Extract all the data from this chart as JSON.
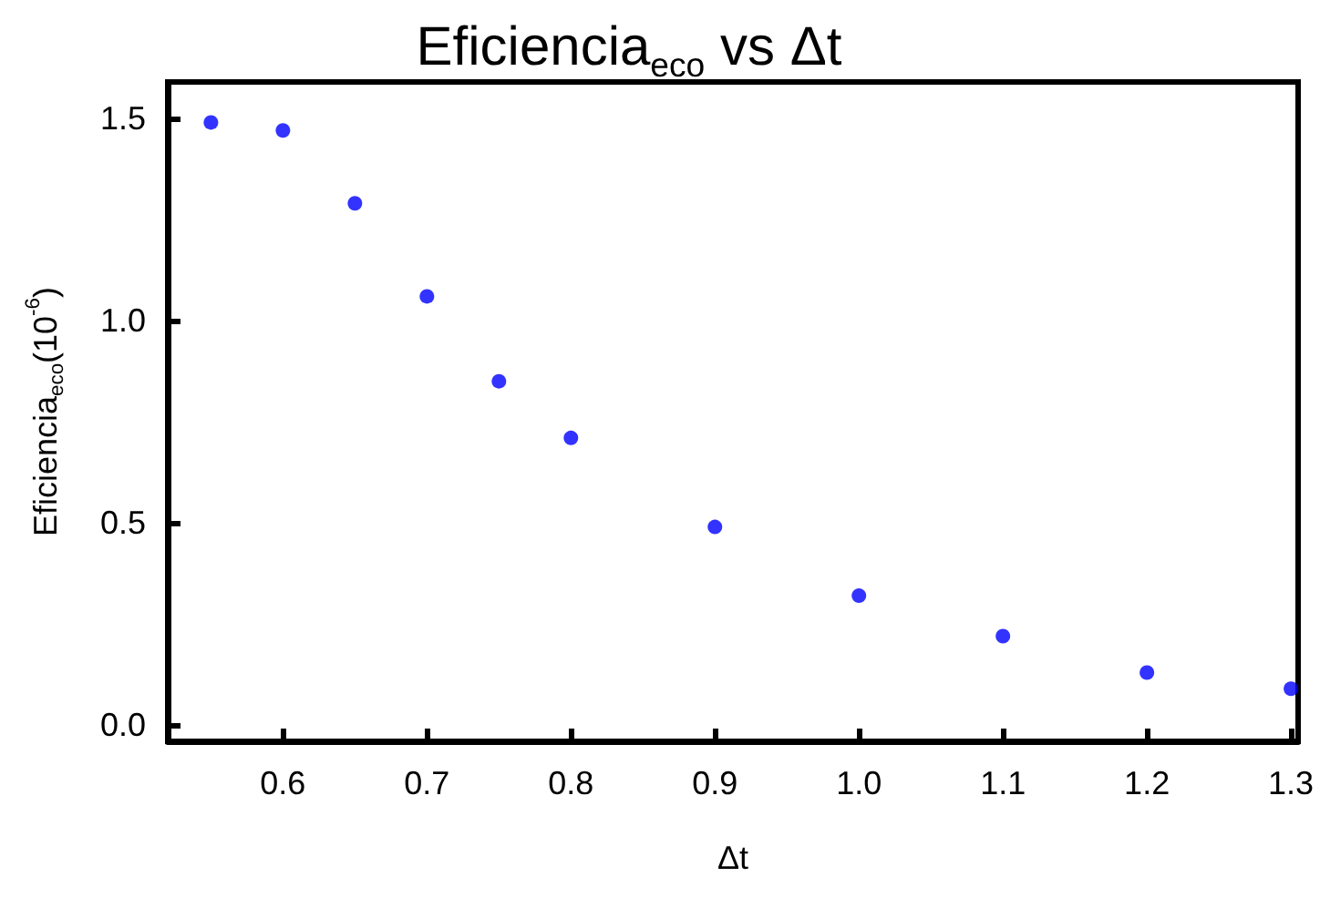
{
  "chart_data": {
    "type": "scatter",
    "title": "Eficiencia$_{eco}$ vs Δt",
    "xlabel": "Δt",
    "ylabel": "Eficiencia$_{eco}$(10$^{-6}$)",
    "x": [
      0.55,
      0.6,
      0.65,
      0.7,
      0.75,
      0.8,
      0.9,
      1.0,
      1.1,
      1.2,
      1.3
    ],
    "series": [
      {
        "color": "#0000ff",
        "values": [
          1.49,
          1.47,
          1.29,
          1.06,
          0.85,
          0.71,
          0.49,
          0.32,
          0.22,
          0.13,
          0.09
        ]
      }
    ],
    "xlim": [
      0.52,
      1.305
    ],
    "xticks": [
      0.6,
      0.7,
      0.8,
      0.9,
      {
        "value": 1,
        "label": "1.0"
      },
      1.1,
      1.2,
      1.3
    ],
    "ylim": [
      -0.04,
      1.59
    ],
    "yticks": [
      {
        "value": 0,
        "label": "0.0"
      },
      0.5,
      {
        "value": 1,
        "label": "1.0"
      },
      1.5
    ],
    "marker": "circle"
  }
}
